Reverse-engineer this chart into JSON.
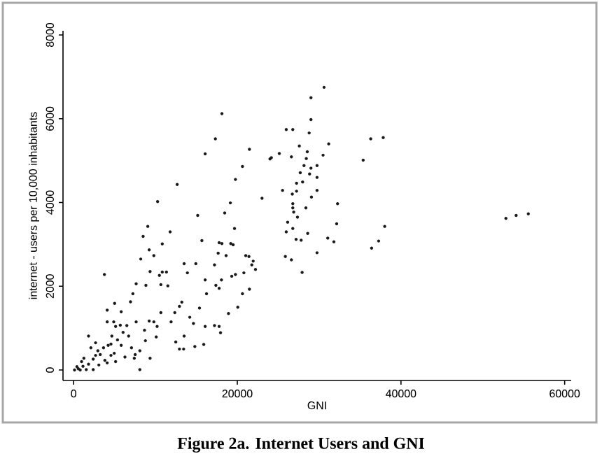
{
  "chart_data": {
    "type": "scatter",
    "title": "Figure 2a. Internet Users and GNI",
    "xlabel": "GNI",
    "ylabel": "internet - users per 10,000 inhabitants",
    "xlim": [
      -1300,
      60800
    ],
    "ylim": [
      -250,
      8100
    ],
    "xticks": [
      0,
      20000,
      40000,
      60000
    ],
    "yticks": [
      0,
      2000,
      4000,
      6000,
      8000
    ],
    "marker": "circle",
    "series": [
      {
        "color": "#1a1a1a",
        "x": [
          52820,
          54070,
          55560,
          37830,
          36300,
          35380,
          38010,
          37270,
          36410,
          30600,
          29000,
          29000,
          28780,
          31170,
          30480,
          25980,
          26780,
          27580,
          28550,
          28430,
          26610,
          25130,
          24160,
          23990,
          28150,
          29740,
          29000,
          28830,
          27690,
          29740,
          27980,
          27240,
          25530,
          29740,
          27240,
          26720,
          29060,
          26780,
          32250,
          26780,
          26890,
          28380,
          27350,
          26150,
          32140,
          28600,
          25980,
          26780,
          27180,
          27800,
          31050,
          31800,
          29740,
          25870,
          26610,
          27920,
          23020,
          18120,
          17320,
          16070,
          21480,
          20630,
          19770,
          19150,
          18460,
          15160,
          15670,
          19660,
          17780,
          18120,
          19200,
          19490,
          17660,
          18630,
          17210,
          21030,
          21420,
          21940,
          21770,
          22220,
          20800,
          19770,
          19320,
          18060,
          17380,
          16070,
          17780,
          16240,
          21480,
          20630,
          20060,
          18920,
          15380,
          17210,
          17780,
          17950,
          16070,
          15900,
          14810,
          13500,
          14930,
          13900,
          12650,
          11790,
          10260,
          10830,
          10830,
          11340,
          11510,
          13220,
          12930,
          12360,
          11910,
          14190,
          14640,
          13500,
          12480,
          12930,
          13440,
          9060,
          8490,
          9230,
          9800,
          8200,
          7640,
          9340,
          8830,
          10480,
          10660,
          3760,
          7240,
          6950,
          5010,
          5810,
          4100,
          4900,
          4100,
          5700,
          6500,
          7640,
          9230,
          9800,
          10660,
          10200,
          10090,
          8770,
          9340,
          8090,
          7520,
          8660,
          6720,
          4670,
          1820,
          2680,
          4220,
          5810,
          4560,
          5130,
          6270,
          7410,
          7070,
          8090,
          3250,
          3820,
          2390,
          3080,
          1820,
          1140,
          570,
          800,
          1540,
          2390,
          970,
          1250,
          2960,
          3650,
          5360,
          6040,
          5130,
          2110,
          4560,
          2680,
          110,
          400,
          4100,
          4960
        ],
        "values": [
          3620,
          3690,
          3730,
          5550,
          5520,
          5010,
          3430,
          3080,
          2910,
          6750,
          6500,
          5980,
          5660,
          5400,
          5130,
          5740,
          5740,
          5350,
          5210,
          5050,
          5090,
          5170,
          5070,
          5040,
          4880,
          4880,
          4820,
          4680,
          4710,
          4600,
          4490,
          4460,
          4290,
          4290,
          4270,
          4200,
          4130,
          3970,
          3970,
          3870,
          3770,
          3870,
          3650,
          3530,
          3490,
          3260,
          3300,
          3380,
          3120,
          3100,
          3150,
          3060,
          2800,
          2710,
          2630,
          2330,
          4100,
          6120,
          5520,
          5160,
          5270,
          4860,
          4550,
          3990,
          3750,
          3690,
          3090,
          3380,
          3040,
          3020,
          3020,
          2990,
          2790,
          2730,
          2510,
          2730,
          2710,
          2600,
          2510,
          2400,
          2320,
          2280,
          2240,
          2150,
          2020,
          2150,
          1950,
          1820,
          1930,
          1820,
          1500,
          1350,
          1480,
          1060,
          1040,
          890,
          1040,
          610,
          560,
          2540,
          2540,
          2320,
          4430,
          3300,
          4020,
          3010,
          2340,
          2340,
          2010,
          1620,
          1520,
          1370,
          1150,
          1260,
          1110,
          810,
          670,
          500,
          500,
          3430,
          3190,
          2870,
          2730,
          2650,
          2060,
          2350,
          2020,
          2260,
          2040,
          2280,
          1820,
          1630,
          1590,
          1390,
          1430,
          1150,
          1150,
          1070,
          1060,
          1150,
          1170,
          1150,
          1370,
          1040,
          790,
          700,
          280,
          10,
          370,
          950,
          810,
          810,
          810,
          650,
          590,
          590,
          350,
          200,
          310,
          280,
          530,
          460,
          370,
          230,
          260,
          120,
          140,
          90,
          30,
          0,
          10,
          10,
          200,
          280,
          460,
          530,
          720,
          900,
          1040,
          530,
          620,
          350,
          0,
          80,
          170,
          400
        ]
      }
    ]
  }
}
